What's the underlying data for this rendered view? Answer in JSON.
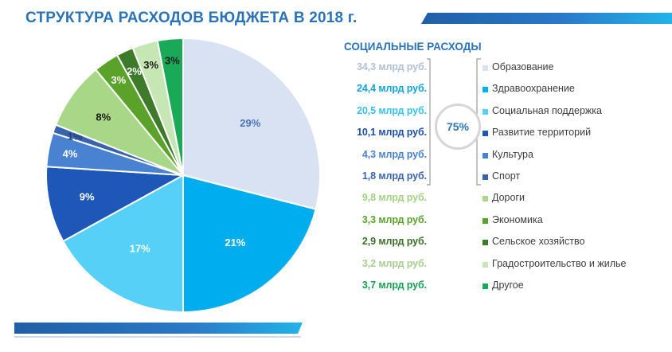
{
  "header": {
    "title": "СТРУКТУРА РАСХОДОВ БЮДЖЕТА В 2018 г."
  },
  "colors": {
    "accent_blue": "#2b73b8",
    "bar_dark": "#1f5fa7",
    "bar_light": "#22b3e8"
  },
  "chart_data": {
    "type": "pie",
    "start_angle_deg": 0,
    "direction": "clockwise",
    "slices": [
      {
        "label": "Образование",
        "value": 29,
        "pct_label": "29%",
        "amount": "34,3 млрд руб.",
        "color": "#d9e2f2",
        "label_color": "#4a73b5",
        "amount_color": "#b2bfd5"
      },
      {
        "label": "Здравоохранение",
        "value": 21,
        "pct_label": "21%",
        "amount": "24,4 млрд руб.",
        "color": "#00aeef",
        "label_color": "#ffffff",
        "amount_color": "#12a3dc"
      },
      {
        "label": "Социальная поддержка",
        "value": 17,
        "pct_label": "17%",
        "amount": "20,5 млрд руб.",
        "color": "#57d0f8",
        "label_color": "#ffffff",
        "amount_color": "#36c1ee"
      },
      {
        "label": "Развитие территорий",
        "value": 9,
        "pct_label": "9%",
        "amount": "10,1 млрд руб.",
        "color": "#1e57b8",
        "label_color": "#ffffff",
        "amount_color": "#1e4ea6"
      },
      {
        "label": "Культура",
        "value": 4,
        "pct_label": "4%",
        "amount": "4,3 млрд руб.",
        "color": "#4a82d2",
        "label_color": "#ffffff",
        "amount_color": "#4a82d2"
      },
      {
        "label": "Спорт",
        "value": 1,
        "pct_label": "1%",
        "amount": "1,8 млрд руб.",
        "color": "#3a63ad",
        "label_color": "#1e3f7a",
        "amount_color": "#3a63ad"
      },
      {
        "label": "Дороги",
        "value": 8,
        "pct_label": "8%",
        "amount": "9,8 млрд руб.",
        "color": "#a9d788",
        "label_color": "#1a1a1a",
        "amount_color": "#a5d184"
      },
      {
        "label": "Экономика",
        "value": 3,
        "pct_label": "3%",
        "amount": "3,3 млрд руб.",
        "color": "#5aa22a",
        "label_color": "#ffffff",
        "amount_color": "#5aa22a"
      },
      {
        "label": "Сельское хозяйство",
        "value": 2,
        "pct_label": "2%",
        "amount": "2,9 млрд руб.",
        "color": "#3d7a2a",
        "label_color": "#ffffff",
        "amount_color": "#3d6f2a"
      },
      {
        "label": "Градостроительство и жилье",
        "value": 3,
        "pct_label": "3%",
        "amount": "3,2 млрд руб.",
        "color": "#c6e6b3",
        "label_color": "#1a1a1a",
        "amount_color": "#a8cf8e"
      },
      {
        "label": "Другое",
        "value": 3,
        "pct_label": "3%",
        "amount": "3,7 млрд руб.",
        "color": "#1aa957",
        "label_color": "#1a1a1a",
        "amount_color": "#17a052"
      }
    ]
  },
  "social": {
    "title": "СОЦИАЛЬНЫЕ РАСХОДЫ",
    "share": "75%"
  }
}
